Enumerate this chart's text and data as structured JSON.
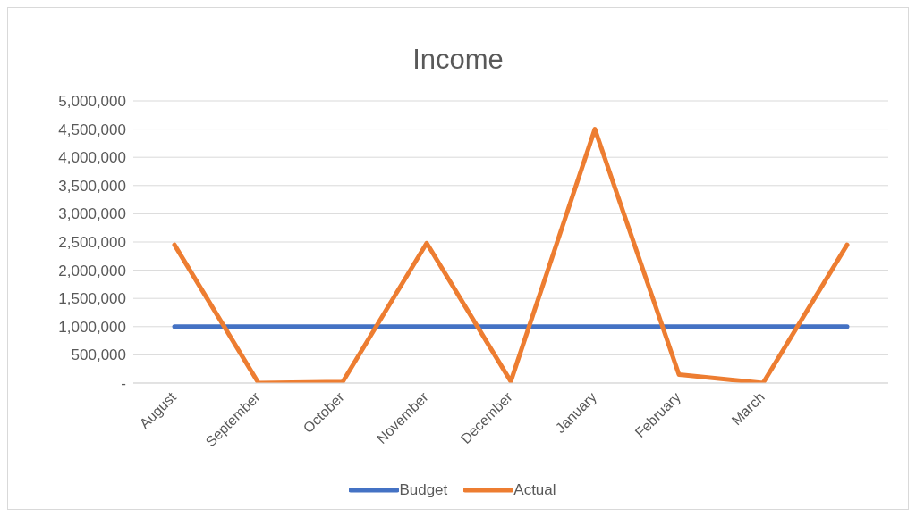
{
  "chart_data": {
    "type": "line",
    "title": "Income",
    "categories": [
      "August",
      "September",
      "October",
      "November",
      "December",
      "January",
      "February",
      "March",
      null
    ],
    "series": [
      {
        "name": "Budget",
        "color": "#4472c4",
        "values": [
          1000000,
          1000000,
          1000000,
          1000000,
          1000000,
          1000000,
          1000000,
          1000000,
          1000000
        ]
      },
      {
        "name": "Actual",
        "color": "#ed7d31",
        "values": [
          2450000,
          0,
          20000,
          2480000,
          30000,
          4500000,
          150000,
          0,
          2450000
        ]
      }
    ],
    "ylim": [
      0,
      5000000
    ],
    "yticks": [
      {
        "value": 0,
        "label": "-"
      },
      {
        "value": 500000,
        "label": "500,000"
      },
      {
        "value": 1000000,
        "label": "1,000,000"
      },
      {
        "value": 1500000,
        "label": "1,500,000"
      },
      {
        "value": 2000000,
        "label": "2,000,000"
      },
      {
        "value": 2500000,
        "label": "2,500,000"
      },
      {
        "value": 3000000,
        "label": "3,000,000"
      },
      {
        "value": 3500000,
        "label": "3,500,000"
      },
      {
        "value": 4000000,
        "label": "4,000,000"
      },
      {
        "value": 4500000,
        "label": "4,500,000"
      },
      {
        "value": 5000000,
        "label": "5,000,000"
      }
    ],
    "grid": "y",
    "legend": "bottom",
    "marker": "none",
    "line_style": "solid"
  }
}
